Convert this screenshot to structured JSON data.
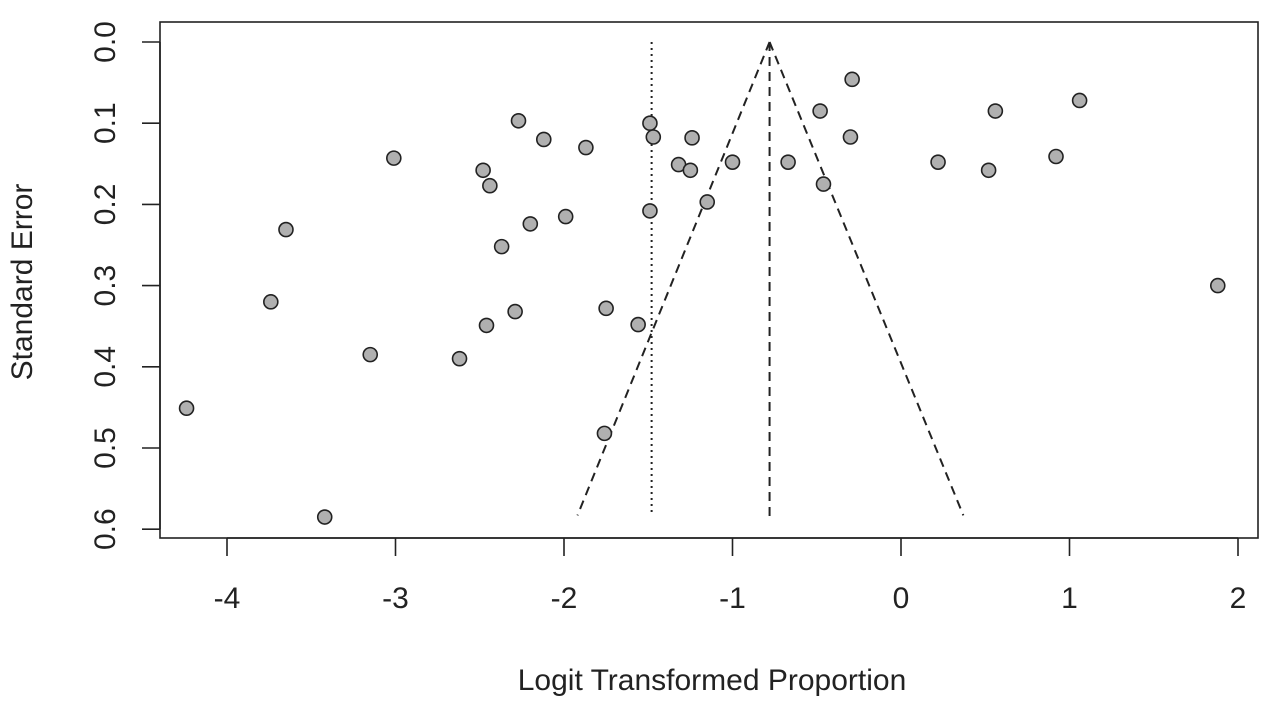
{
  "chart_data": {
    "type": "scatter",
    "title": "",
    "xlabel": "Logit Transformed Proportion",
    "ylabel": "Standard Error",
    "xlim": [
      -4.4,
      2.1
    ],
    "ylim": [
      0.0,
      0.6
    ],
    "y_reversed": true,
    "x_ticks": [
      -4,
      -3,
      -2,
      -1,
      0,
      1,
      2
    ],
    "x_tick_labels": [
      "-4",
      "-3",
      "-2",
      "-1",
      "0",
      "1",
      "2"
    ],
    "y_ticks": [
      0.0,
      0.1,
      0.2,
      0.3,
      0.4,
      0.5,
      0.6
    ],
    "y_tick_labels": [
      "0.0",
      "0.1",
      "0.2",
      "0.3",
      "0.4",
      "0.5",
      "0.6"
    ],
    "grid": false,
    "point_color": "#b0b0b0",
    "point_edge_color": "#222222",
    "points": [
      {
        "x": -4.24,
        "y": 0.451
      },
      {
        "x": -3.74,
        "y": 0.32
      },
      {
        "x": -3.65,
        "y": 0.231
      },
      {
        "x": -3.42,
        "y": 0.585
      },
      {
        "x": -3.15,
        "y": 0.385
      },
      {
        "x": -3.01,
        "y": 0.143
      },
      {
        "x": -2.62,
        "y": 0.39
      },
      {
        "x": -2.48,
        "y": 0.158
      },
      {
        "x": -2.46,
        "y": 0.349
      },
      {
        "x": -2.44,
        "y": 0.177
      },
      {
        "x": -2.37,
        "y": 0.252
      },
      {
        "x": -2.29,
        "y": 0.332
      },
      {
        "x": -2.27,
        "y": 0.097
      },
      {
        "x": -2.2,
        "y": 0.224
      },
      {
        "x": -2.12,
        "y": 0.12
      },
      {
        "x": -1.99,
        "y": 0.215
      },
      {
        "x": -1.87,
        "y": 0.13
      },
      {
        "x": -1.76,
        "y": 0.482
      },
      {
        "x": -1.75,
        "y": 0.328
      },
      {
        "x": -1.56,
        "y": 0.348
      },
      {
        "x": -1.49,
        "y": 0.1
      },
      {
        "x": -1.49,
        "y": 0.208
      },
      {
        "x": -1.47,
        "y": 0.117
      },
      {
        "x": -1.32,
        "y": 0.151
      },
      {
        "x": -1.25,
        "y": 0.158
      },
      {
        "x": -1.24,
        "y": 0.118
      },
      {
        "x": -1.15,
        "y": 0.197
      },
      {
        "x": -1.0,
        "y": 0.148
      },
      {
        "x": -0.67,
        "y": 0.148
      },
      {
        "x": -0.48,
        "y": 0.085
      },
      {
        "x": -0.46,
        "y": 0.175
      },
      {
        "x": -0.3,
        "y": 0.117
      },
      {
        "x": -0.29,
        "y": 0.046
      },
      {
        "x": 0.22,
        "y": 0.148
      },
      {
        "x": 0.52,
        "y": 0.158
      },
      {
        "x": 0.56,
        "y": 0.085
      },
      {
        "x": 0.92,
        "y": 0.141
      },
      {
        "x": 1.06,
        "y": 0.072
      },
      {
        "x": 1.88,
        "y": 0.3
      }
    ],
    "reference_lines": [
      {
        "kind": "vertical",
        "style": "dotted",
        "x": -1.48,
        "y_range": [
          0.0,
          0.58
        ]
      },
      {
        "kind": "vertical",
        "style": "dashed",
        "x": -0.78,
        "y_range": [
          0.0,
          0.585
        ]
      }
    ],
    "funnel": {
      "style": "dashed",
      "apex": {
        "x": -0.78,
        "y": 0.0
      },
      "left_end": {
        "x": -1.92,
        "y": 0.583
      },
      "right_end": {
        "x": 0.37,
        "y": 0.583
      }
    }
  }
}
